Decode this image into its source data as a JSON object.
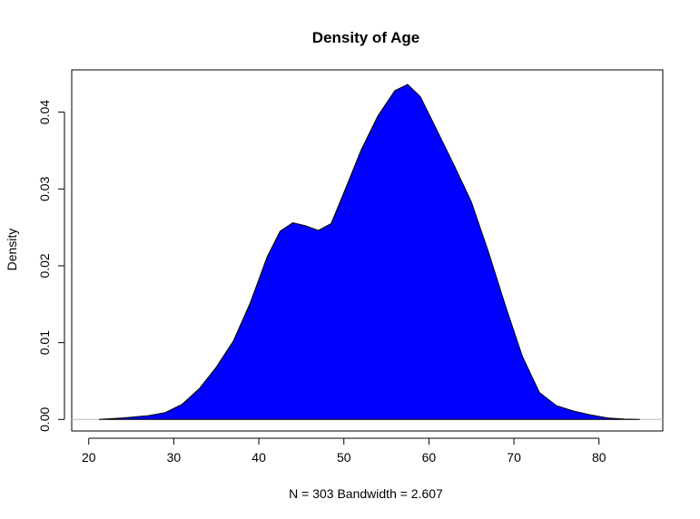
{
  "chart_data": {
    "type": "area",
    "title": "Density of Age",
    "xlabel": "N = 303   Bandwidth = 2.607",
    "ylabel": "Density",
    "xlim": [
      18,
      87.5
    ],
    "ylim": [
      -0.0015,
      0.0455
    ],
    "x_ticks": [
      20,
      30,
      40,
      50,
      60,
      70,
      80
    ],
    "y_ticks": [
      0.0,
      0.01,
      0.02,
      0.03,
      0.04
    ],
    "x_tick_labels": [
      "20",
      "30",
      "40",
      "50",
      "60",
      "70",
      "80"
    ],
    "y_tick_labels": [
      "0.00",
      "0.01",
      "0.02",
      "0.03",
      "0.04"
    ],
    "grid": false,
    "fill_color": "#0000ff",
    "baseline_color": "#bebebe",
    "series": [
      {
        "x": [
          21.2,
          24,
          27,
          29,
          31,
          33,
          35,
          37,
          39,
          41,
          42.5,
          44,
          45.5,
          47,
          48.5,
          50,
          52,
          54,
          56,
          57.5,
          59,
          61,
          63,
          65,
          67,
          69,
          71,
          73,
          75,
          77,
          79,
          81,
          83,
          84.8
        ],
        "y": [
          0.0,
          0.0002,
          0.0005,
          0.0009,
          0.002,
          0.004,
          0.0068,
          0.0102,
          0.0152,
          0.0212,
          0.0245,
          0.0256,
          0.0252,
          0.0246,
          0.0255,
          0.0295,
          0.035,
          0.0395,
          0.0428,
          0.0436,
          0.042,
          0.0375,
          0.033,
          0.0283,
          0.0218,
          0.0148,
          0.0082,
          0.0035,
          0.0018,
          0.0011,
          0.0006,
          0.0002,
          5e-05,
          0.0
        ]
      }
    ]
  }
}
